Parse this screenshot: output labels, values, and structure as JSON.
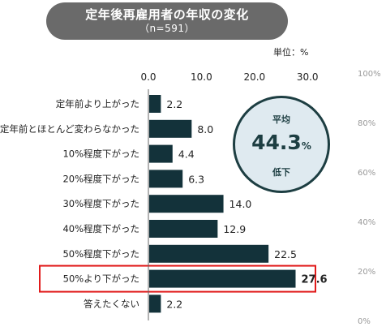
{
  "title": "定年後再雇用者の年収の変化",
  "subtitle": "（n=591）",
  "unit_label": "単位：%",
  "summary": {
    "label": "平均",
    "value": "44.3",
    "unit": "%",
    "sub": "低下"
  },
  "right_axis_ticks": [
    "100%",
    "80%",
    "60%",
    "40%",
    "20%",
    "0%"
  ],
  "colors": {
    "bar": "#13323a",
    "highlight": "#e11b1b",
    "title_bg": "#6a6a6a",
    "circle_fill": "#dfeaf0",
    "circle_border": "#1d3e42"
  },
  "chart_data": {
    "type": "bar",
    "orientation": "horizontal",
    "title": "定年後再雇用者の年収の変化",
    "xlim": [
      0,
      30
    ],
    "x_ticks": [
      "0.0",
      "10.0",
      "20.0",
      "30.0"
    ],
    "categories": [
      "定年前より上がった",
      "定年前とほとんど変わらなかった",
      "10%程度下がった",
      "20%程度下がった",
      "30%程度下がった",
      "40%程度下がった",
      "50%程度下がった",
      "50%より下がった",
      "答えたくない"
    ],
    "values": [
      2.2,
      8.0,
      4.4,
      6.3,
      14.0,
      12.9,
      22.5,
      27.6,
      2.2
    ],
    "value_labels": [
      "2.2",
      "8.0",
      "4.4",
      "6.3",
      "14.0",
      "12.9",
      "22.5",
      "27.6",
      "2.2"
    ],
    "highlight_category": "50%より下がった"
  }
}
